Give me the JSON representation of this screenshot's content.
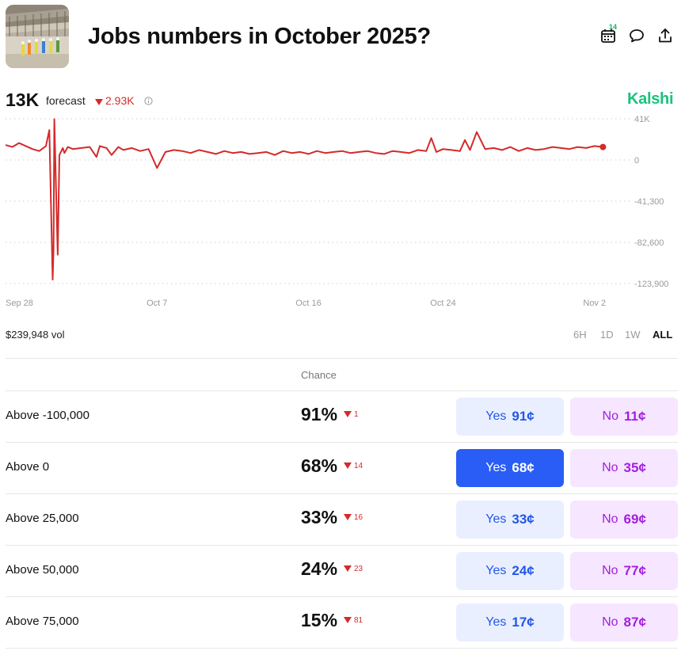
{
  "header": {
    "title": "Jobs numbers in October 2025?",
    "calendar_badge": "14",
    "thumbnail": "construction-site-photo"
  },
  "forecast": {
    "value": "13K",
    "label": "forecast",
    "delta": "2.93K",
    "delta_direction": "down"
  },
  "brand": "Kalshi",
  "chart_data": {
    "type": "line",
    "color": "#d42a2a",
    "y_ticks": [
      "41K",
      "0",
      "-41,300",
      "-82,600",
      "-123,900"
    ],
    "ylim": [
      -123900,
      41300
    ],
    "x_ticks": [
      "Sep 28",
      "Oct 7",
      "Oct 16",
      "Oct 24",
      "Nov 2"
    ],
    "x_tick_days": [
      0,
      9,
      18,
      26,
      35
    ],
    "x_days": [
      0,
      0.4,
      0.8,
      1.2,
      1.6,
      2,
      2.4,
      2.6,
      2.8,
      2.85,
      2.9,
      3,
      3.1,
      3.2,
      3.4,
      3.5,
      3.7,
      4,
      4.5,
      5,
      5.4,
      5.6,
      6,
      6.3,
      6.7,
      7,
      7.5,
      8,
      8.5,
      9,
      9.5,
      10,
      10.5,
      11,
      11.5,
      12,
      12.5,
      13,
      13.5,
      14,
      14.5,
      15,
      15.5,
      16,
      16.5,
      17,
      17.5,
      18,
      18.5,
      19,
      19.5,
      20,
      20.5,
      21,
      21.5,
      22,
      22.5,
      23,
      23.5,
      24,
      24.5,
      25,
      25.3,
      25.6,
      26,
      26.5,
      27,
      27.3,
      27.6,
      28,
      28.5,
      29,
      29.5,
      30,
      30.5,
      31,
      31.5,
      32,
      32.5,
      33,
      33.5,
      34,
      34.5,
      35,
      35.5
    ],
    "y_values": [
      15000,
      13000,
      17000,
      14000,
      11000,
      9000,
      14000,
      30000,
      -120000,
      -90000,
      41000,
      -30000,
      -95000,
      5000,
      12000,
      7000,
      13000,
      11000,
      12000,
      13000,
      3000,
      14000,
      12000,
      5000,
      13000,
      10000,
      12000,
      9000,
      11000,
      -8000,
      8000,
      10000,
      9000,
      7000,
      10000,
      8000,
      6000,
      9000,
      7000,
      8000,
      6000,
      7000,
      8000,
      5000,
      9000,
      7000,
      8000,
      6000,
      9000,
      7000,
      8000,
      9000,
      7000,
      8000,
      9000,
      7000,
      6000,
      9000,
      8000,
      7000,
      10000,
      9000,
      22000,
      8000,
      11000,
      10000,
      9000,
      20000,
      10000,
      28000,
      11000,
      12000,
      10000,
      13000,
      9000,
      12000,
      10000,
      11000,
      13000,
      12000,
      11000,
      13000,
      12000,
      14000,
      13000
    ],
    "grid": true
  },
  "volume": "$239,948 vol",
  "ranges": [
    "6H",
    "1D",
    "1W",
    "ALL"
  ],
  "active_range": "ALL",
  "table": {
    "chance_header": "Chance",
    "rows": [
      {
        "label": "Above -100,000",
        "chance": "91%",
        "delta": "1",
        "yes_label": "Yes",
        "yes_price": "91¢",
        "no_label": "No",
        "no_price": "11¢"
      },
      {
        "label": "Above 0",
        "chance": "68%",
        "delta": "14",
        "yes_label": "Yes",
        "yes_price": "68¢",
        "no_label": "No",
        "no_price": "35¢"
      },
      {
        "label": "Above 25,000",
        "chance": "33%",
        "delta": "16",
        "yes_label": "Yes",
        "yes_price": "33¢",
        "no_label": "No",
        "no_price": "69¢"
      },
      {
        "label": "Above 50,000",
        "chance": "24%",
        "delta": "23",
        "yes_label": "Yes",
        "yes_price": "24¢",
        "no_label": "No",
        "no_price": "77¢"
      },
      {
        "label": "Above 75,000",
        "chance": "15%",
        "delta": "81",
        "yes_label": "Yes",
        "yes_price": "17¢",
        "no_label": "No",
        "no_price": "87¢"
      }
    ]
  }
}
